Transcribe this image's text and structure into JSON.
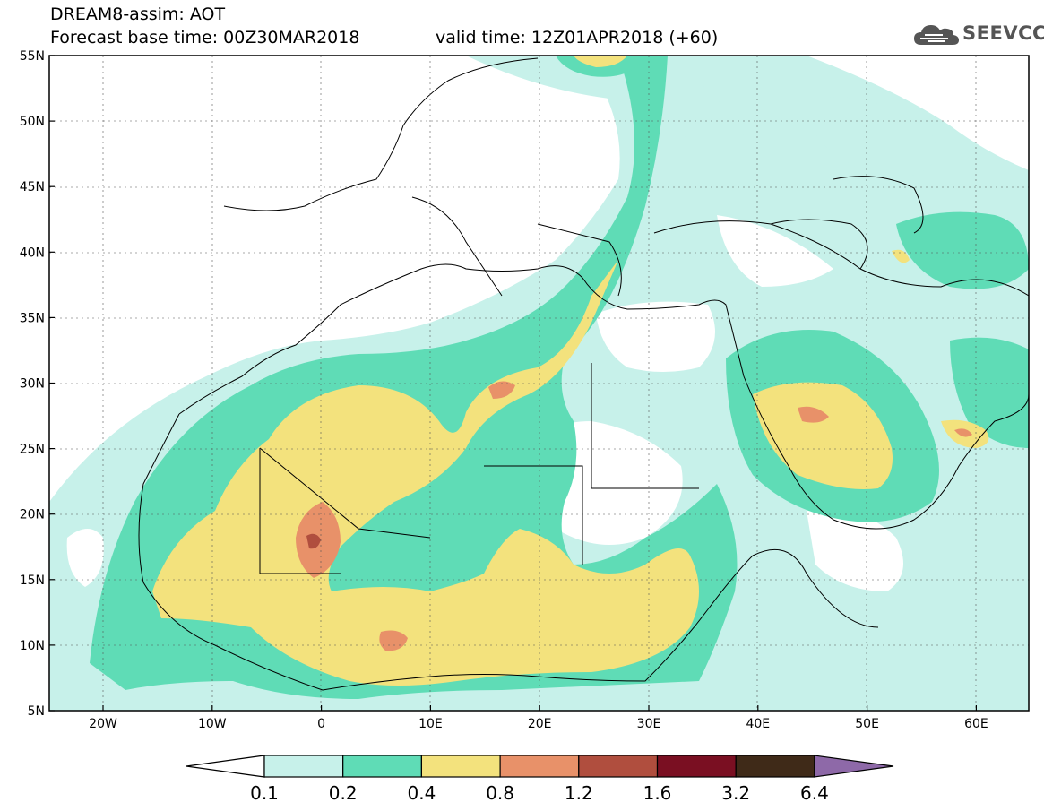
{
  "header": {
    "title_line1": "DREAM8-assim: AOT",
    "title_line2": "Forecast base time: 00Z30MAR2018",
    "valid_time": "valid time: 12Z01APR2018 (+60)"
  },
  "logo": {
    "text": "SEEVCCC",
    "icon": "cloud-icon"
  },
  "map": {
    "lat_labels": [
      "55N",
      "50N",
      "45N",
      "40N",
      "35N",
      "30N",
      "25N",
      "20N",
      "15N",
      "10N",
      "5N"
    ],
    "lon_labels": [
      "20W",
      "10W",
      "0",
      "10E",
      "20E",
      "30E",
      "40E",
      "50E",
      "60E"
    ]
  },
  "colorbar": {
    "labels": [
      "0.1",
      "0.2",
      "0.4",
      "0.8",
      "1.2",
      "1.6",
      "3.2",
      "6.4"
    ],
    "colors": [
      "#c7f1ea",
      "#5fdcb6",
      "#f3e27d",
      "#e89169",
      "#b04e3e",
      "#7a0f22",
      "#3f2a18",
      "#8e69a8"
    ]
  }
}
